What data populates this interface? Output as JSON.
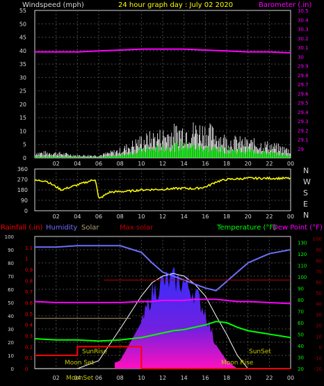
{
  "colors": {
    "bg": "#000000",
    "frame": "#d8d8d8",
    "grid": "#4a4a4a",
    "yellow": "#ffff00",
    "white": "#ffffff",
    "magenta": "#ff00ff",
    "blue": "#6e6eff",
    "green": "#00ff00",
    "red": "#ff0000",
    "olive": "#b0a070",
    "maxsolar": "#c00000",
    "cyan": "#00d0d0",
    "darkred": "#a00000",
    "gold": "#c8c800"
  },
  "header": {
    "windspeed": "Windspeed (mph)",
    "title": "24 hour graph day : July 02 2020",
    "barometer": "Barometer (.in)"
  },
  "x_ticks": [
    "02",
    "04",
    "06",
    "08",
    "10",
    "12",
    "14",
    "16",
    "18",
    "20",
    "22",
    "00"
  ],
  "direction_letters": [
    "N",
    "W",
    "S",
    "E",
    "N"
  ],
  "legend": {
    "rainfall": "Rainfall (.in)",
    "humidity": "Humidity",
    "solar": "Solar",
    "maxsolar": "Max solar",
    "temperature": "Temperature (°F)",
    "dewpoint": "Dew Point (°F)"
  },
  "annotations": {
    "moonset": "Moon Set",
    "sunrise": "SunRise",
    "sunset": "SunSet",
    "moonrise": "Moon Rise",
    "moonset_low": "MoonSet"
  },
  "chart_data": [
    {
      "type": "line",
      "title": "24 hour graph day : July 02 2020",
      "ylabel": "Windspeed (mph)",
      "ylim": [
        0,
        55
      ],
      "yticks": [
        "0",
        "5",
        "10",
        "15",
        "20",
        "25",
        "30",
        "35",
        "40",
        "45",
        "50",
        "55"
      ],
      "y2label": "Barometer (.in)",
      "y2lim": [
        28.9,
        30.5
      ],
      "y2ticks": [
        "29",
        "29.1",
        "29.2",
        "29.3",
        "29.4",
        "29.5",
        "29.6",
        "29.7",
        "29.8",
        "29.9",
        "30",
        "30.1",
        "30.2",
        "30.3",
        "30.4",
        "30.5"
      ],
      "x_hours": [
        0,
        2,
        4,
        6,
        8,
        10,
        12,
        14,
        16,
        18,
        20,
        22,
        24
      ],
      "series": [
        {
          "name": "Barometer (.in)",
          "axis": "y2",
          "values": [
            30.05,
            30.05,
            30.05,
            30.06,
            30.07,
            30.08,
            30.08,
            30.08,
            30.07,
            30.06,
            30.05,
            30.05,
            30.04
          ]
        },
        {
          "name": "Windspeed (mph)",
          "axis": "y",
          "gust_values": [
            2,
            2,
            1,
            1,
            3,
            7,
            9,
            11,
            11,
            7,
            6,
            5,
            3
          ],
          "avg_values": [
            0.5,
            0.5,
            0.3,
            0.2,
            1,
            3,
            4,
            5,
            4,
            3,
            3,
            2,
            1
          ]
        }
      ]
    },
    {
      "type": "line",
      "ylabel": "Direction",
      "ylim": [
        0,
        360
      ],
      "yticks": [
        "0",
        "90",
        "180",
        "270",
        "360"
      ],
      "x_hours": [
        0,
        1,
        2.5,
        5.3,
        5.7,
        6,
        7,
        8,
        9,
        10,
        12,
        14,
        15,
        16,
        16.5,
        17,
        18,
        20,
        22,
        24
      ],
      "values": [
        260,
        260,
        180,
        260,
        270,
        100,
        160,
        165,
        170,
        180,
        185,
        195,
        190,
        205,
        225,
        250,
        270,
        280,
        280,
        280
      ]
    },
    {
      "type": "area",
      "y_left_ticks": [
        "0",
        "10",
        "20",
        "30",
        "40",
        "50",
        "60",
        "70",
        "80",
        "90",
        "100"
      ],
      "rain_ticks": [
        "0",
        "0.1",
        "0.2",
        "0.3",
        "0.4",
        "0.5",
        "0.6",
        "0.7",
        "0.8",
        "0.9",
        "1",
        "1.1"
      ],
      "temp_ticks": [
        "20",
        "30",
        "40",
        "50",
        "60",
        "70",
        "80",
        "90",
        "100",
        "110",
        "120",
        "130"
      ],
      "dew_ticks": [
        "-20",
        "-10",
        "0",
        "10",
        "20",
        "30",
        "40",
        "50",
        "60",
        "70",
        "80",
        "90",
        "100"
      ],
      "x_hours": [
        0,
        2,
        4,
        6,
        8,
        10,
        11,
        12,
        13,
        14,
        15,
        16,
        17,
        18,
        19,
        20,
        22,
        24
      ],
      "series": [
        {
          "name": "Humidity",
          "axis": "humidity_pct",
          "values": [
            92,
            92,
            93,
            93,
            93,
            88,
            80,
            73,
            70,
            67,
            64,
            61,
            59,
            66,
            73,
            80,
            87,
            90
          ]
        },
        {
          "name": "Solar",
          "axis": "solar_pct",
          "values": [
            0,
            0,
            0,
            0,
            6,
            35,
            62,
            70,
            72,
            70,
            62,
            46,
            18,
            6,
            0,
            0,
            0,
            0
          ]
        },
        {
          "name": "Max solar",
          "axis": "solar_pct",
          "values": [
            0,
            0,
            0,
            6,
            30,
            55,
            65,
            70,
            72,
            70,
            64,
            55,
            40,
            26,
            10,
            0,
            0,
            0
          ]
        },
        {
          "name": "Temperature (°F)",
          "axis": "temperature_f",
          "values": [
            46,
            45,
            45,
            44,
            45,
            47,
            49,
            51,
            53,
            54,
            56,
            58,
            61,
            60,
            56,
            53,
            50,
            47
          ]
        },
        {
          "name": "Dew Point (°F)",
          "axis": "dewpoint_f",
          "values": [
            42,
            41,
            41,
            41,
            41,
            42,
            42,
            43,
            43,
            43,
            44,
            44,
            44,
            43,
            42,
            42,
            41,
            40
          ]
        },
        {
          "name": "Rainfall (.in)",
          "axis": "rain_in",
          "values": [
            0.12,
            0.12,
            0.2,
            0.2,
            0.2,
            0,
            0,
            0,
            0,
            0,
            0,
            0,
            0,
            0,
            0,
            0,
            0,
            0
          ]
        }
      ]
    }
  ]
}
